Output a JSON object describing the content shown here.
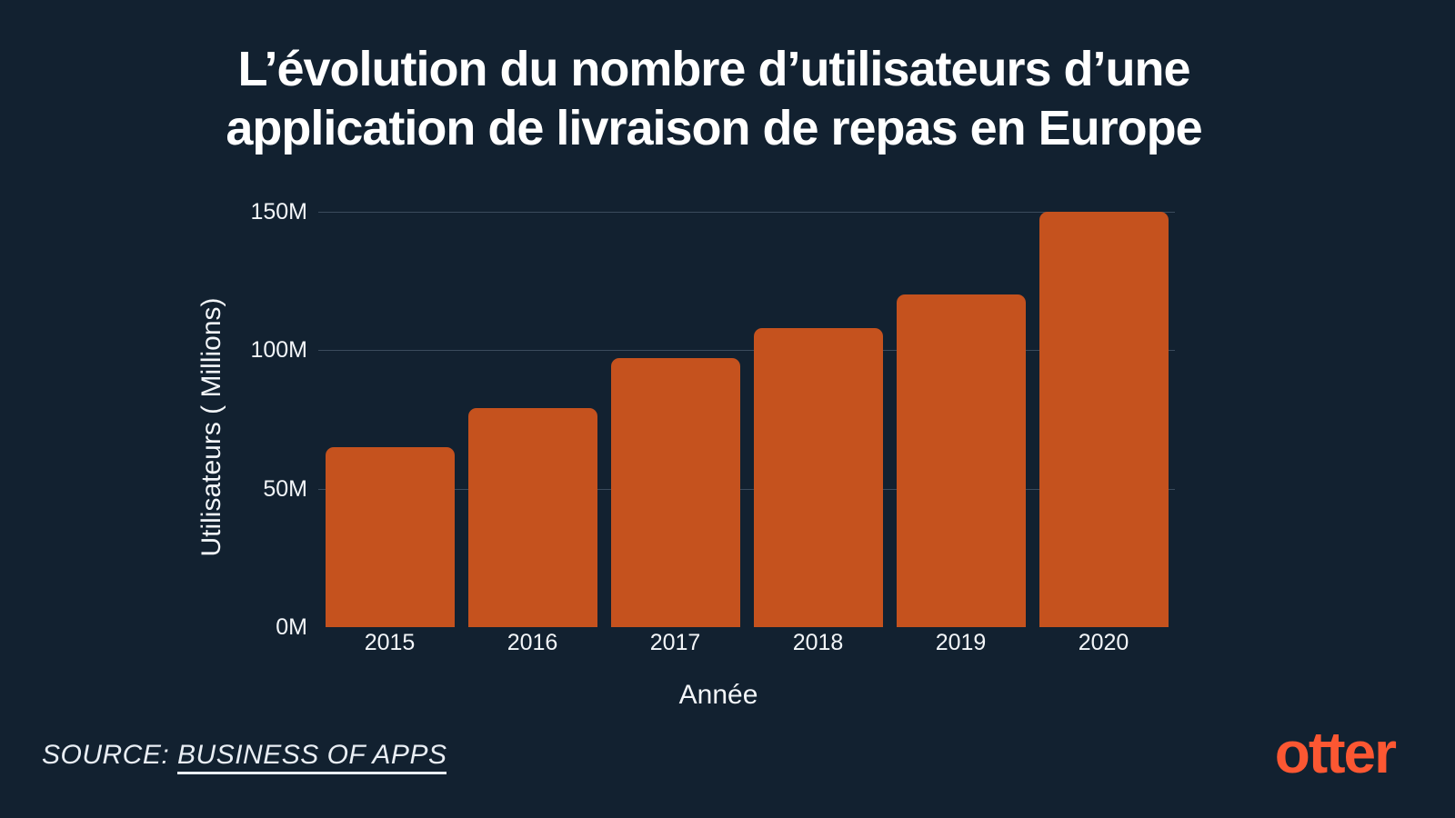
{
  "title": {
    "line1": "L’évolution du nombre d’utilisateurs d’une",
    "line2": "application de livraison de repas en Europe"
  },
  "chart_data": {
    "type": "bar",
    "title": "L’évolution du nombre d’utilisateurs d’une application de livraison de repas en Europe",
    "categories": [
      "2015",
      "2016",
      "2017",
      "2018",
      "2019",
      "2020"
    ],
    "values": [
      65,
      79,
      97,
      108,
      120,
      150
    ],
    "unit": "M",
    "xlabel": "Année",
    "ylabel": "Utilisateurs ( Millions)",
    "ylim": [
      0,
      150
    ],
    "yticks": [
      {
        "value": 0,
        "label": "0M"
      },
      {
        "value": 50,
        "label": "50M"
      },
      {
        "value": 100,
        "label": "100M"
      },
      {
        "value": 150,
        "label": "150M"
      }
    ],
    "grid": true,
    "legend": false,
    "colors": {
      "background": "#122130",
      "bar": "#c5521e",
      "text": "#ffffff",
      "gridline": "#3a4c5f"
    }
  },
  "footer": {
    "source_prefix": "SOURCE:",
    "source_link": "BUSINESS OF APPS",
    "logo_text": "otter",
    "logo_color": "#fc5732"
  }
}
